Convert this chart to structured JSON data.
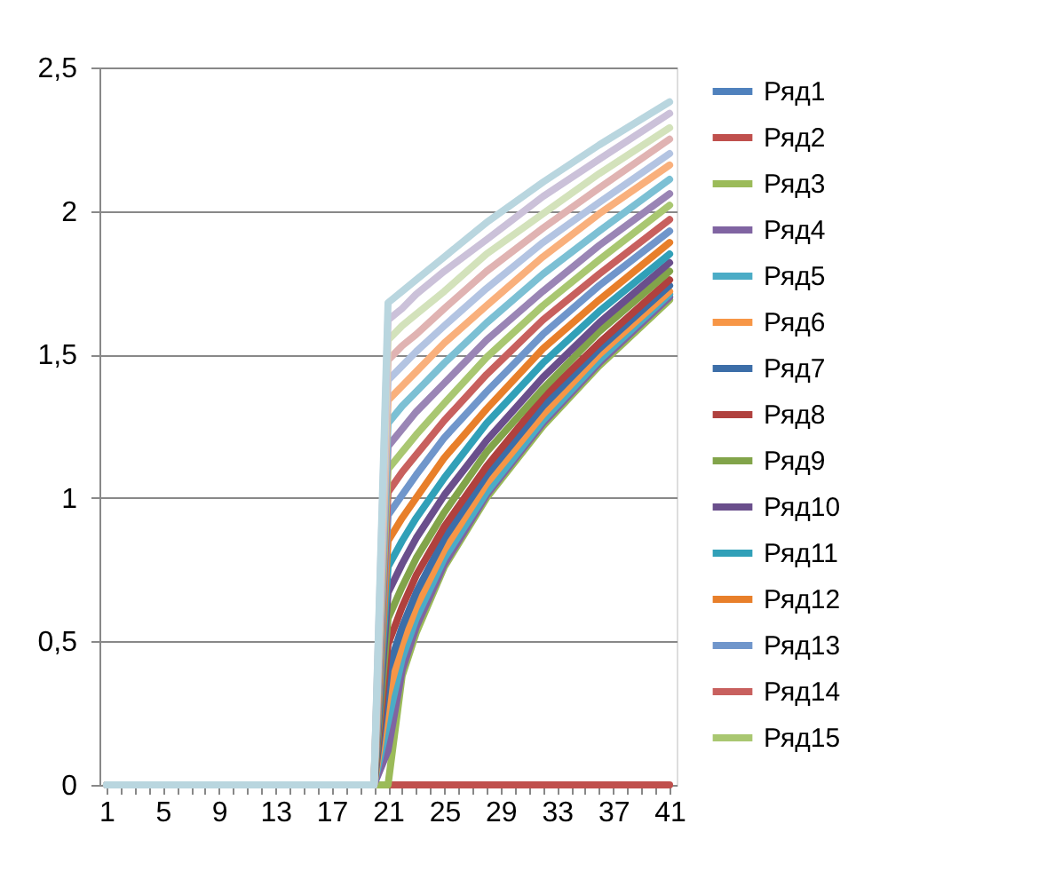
{
  "chart_data": {
    "type": "line",
    "xlim": [
      0.5,
      41.5
    ],
    "xticks": [
      1,
      {
        "value": 2,
        "label": null
      },
      {
        "value": 3,
        "label": null
      },
      {
        "value": 4,
        "label": null
      },
      5,
      {
        "value": 6,
        "label": null
      },
      {
        "value": 7,
        "label": null
      },
      {
        "value": 8,
        "label": null
      },
      9,
      {
        "value": 10,
        "label": null
      },
      {
        "value": 11,
        "label": null
      },
      {
        "value": 12,
        "label": null
      },
      13,
      {
        "value": 14,
        "label": null
      },
      {
        "value": 15,
        "label": null
      },
      {
        "value": 16,
        "label": null
      },
      17,
      {
        "value": 18,
        "label": null
      },
      {
        "value": 19,
        "label": null
      },
      {
        "value": 20,
        "label": null
      },
      21,
      {
        "value": 22,
        "label": null
      },
      {
        "value": 23,
        "label": null
      },
      {
        "value": 24,
        "label": null
      },
      25,
      {
        "value": 26,
        "label": null
      },
      {
        "value": 27,
        "label": null
      },
      {
        "value": 28,
        "label": null
      },
      29,
      {
        "value": 30,
        "label": null
      },
      {
        "value": 31,
        "label": null
      },
      {
        "value": 32,
        "label": null
      },
      33,
      {
        "value": 34,
        "label": null
      },
      {
        "value": 35,
        "label": null
      },
      {
        "value": 36,
        "label": null
      },
      37,
      {
        "value": 38,
        "label": null
      },
      {
        "value": 39,
        "label": null
      },
      {
        "value": 40,
        "label": null
      },
      41
    ],
    "ylim": [
      0,
      2.5
    ],
    "yticks": [
      0,
      {
        "value": 0.5,
        "label": "0,5"
      },
      1,
      {
        "value": 1.5,
        "label": "1,5"
      },
      2,
      {
        "value": 2.5,
        "label": "2,5"
      }
    ],
    "grid": "y",
    "legend": "right",
    "series": [
      {
        "name": "Ряд1",
        "color": "#4f81bd"
      },
      {
        "name": "Ряд2",
        "color": "#c0504d",
        "x": [
          1,
          41
        ],
        "values": [
          0,
          0
        ]
      },
      {
        "name": "Ряд3",
        "color": "#9bbb59",
        "x": [
          1,
          20,
          21,
          22,
          23,
          25,
          28,
          32,
          36,
          41
        ],
        "values": [
          0,
          0,
          0,
          0.38,
          0.53,
          0.76,
          1.0,
          1.25,
          1.46,
          1.69
        ]
      },
      {
        "name": "Ряд4",
        "color": "#8064a2",
        "x": [
          1,
          20,
          21,
          22,
          23,
          25,
          28,
          32,
          36,
          41
        ],
        "values": [
          0,
          0,
          0.12,
          0.4,
          0.55,
          0.77,
          1.01,
          1.26,
          1.47,
          1.7
        ]
      },
      {
        "name": "Ряд5",
        "color": "#4bacc6",
        "x": [
          1,
          20,
          21,
          22,
          23,
          25,
          28,
          32,
          36,
          41
        ],
        "values": [
          0,
          0,
          0.22,
          0.44,
          0.58,
          0.79,
          1.02,
          1.27,
          1.48,
          1.71
        ]
      },
      {
        "name": "Ряд6",
        "color": "#f79646",
        "x": [
          1,
          20,
          21,
          22,
          23,
          25,
          28,
          32,
          36,
          41
        ],
        "values": [
          0,
          0,
          0.31,
          0.49,
          0.62,
          0.82,
          1.05,
          1.29,
          1.5,
          1.72
        ]
      },
      {
        "name": "Ряд7",
        "color": "#3c6ea8",
        "x": [
          1,
          20,
          21,
          22,
          23,
          25,
          28,
          32,
          36,
          41
        ],
        "values": [
          0,
          0,
          0.4,
          0.55,
          0.67,
          0.86,
          1.08,
          1.32,
          1.52,
          1.74
        ]
      },
      {
        "name": "Ряд8",
        "color": "#b0413e",
        "x": [
          1,
          20,
          21,
          22,
          23,
          25,
          28,
          32,
          36,
          41
        ],
        "values": [
          0,
          0,
          0.49,
          0.62,
          0.73,
          0.9,
          1.11,
          1.35,
          1.54,
          1.76
        ]
      },
      {
        "name": "Ряд9",
        "color": "#82a44a",
        "x": [
          1,
          20,
          21,
          22,
          23,
          25,
          28,
          32,
          36,
          41
        ],
        "values": [
          0,
          0,
          0.58,
          0.69,
          0.79,
          0.95,
          1.16,
          1.38,
          1.58,
          1.79
        ]
      },
      {
        "name": "Ряд10",
        "color": "#6a4f8c",
        "x": [
          1,
          20,
          21,
          22,
          23,
          25,
          28,
          32,
          36,
          41
        ],
        "values": [
          0,
          0,
          0.67,
          0.77,
          0.86,
          1.01,
          1.2,
          1.42,
          1.61,
          1.82
        ]
      },
      {
        "name": "Ряд11",
        "color": "#31a0b8",
        "x": [
          1,
          20,
          21,
          22,
          23,
          25,
          28,
          32,
          36,
          41
        ],
        "values": [
          0,
          0,
          0.76,
          0.85,
          0.93,
          1.07,
          1.26,
          1.47,
          1.65,
          1.85
        ]
      },
      {
        "name": "Ряд12",
        "color": "#e87f2a",
        "x": [
          1,
          20,
          21,
          22,
          23,
          25,
          28,
          32,
          36,
          41
        ],
        "values": [
          0,
          0,
          0.85,
          0.93,
          1.0,
          1.14,
          1.31,
          1.52,
          1.69,
          1.89
        ]
      },
      {
        "name": "Ряд13",
        "color": "#7096cb",
        "x": [
          1,
          20,
          21,
          22,
          23,
          25,
          28,
          32,
          36,
          41
        ],
        "values": [
          0,
          0,
          0.94,
          1.01,
          1.08,
          1.21,
          1.37,
          1.57,
          1.74,
          1.93
        ]
      },
      {
        "name": "Ряд14",
        "color": "#c8605e",
        "x": [
          1,
          20,
          21,
          22,
          23,
          25,
          28,
          32,
          36,
          41
        ],
        "values": [
          0,
          0,
          1.02,
          1.09,
          1.15,
          1.27,
          1.43,
          1.62,
          1.78,
          1.97
        ]
      },
      {
        "name": "Ряд15",
        "color": "#a9c771",
        "x": [
          1,
          20,
          21,
          22,
          23,
          25,
          28,
          32,
          36,
          41
        ],
        "values": [
          0,
          0,
          1.1,
          1.16,
          1.22,
          1.33,
          1.49,
          1.67,
          1.83,
          2.02
        ]
      },
      {
        "color": "#9a85b5",
        "x": [
          1,
          20,
          21,
          22,
          23,
          25,
          28,
          32,
          36,
          41
        ],
        "values": [
          0,
          0,
          1.18,
          1.24,
          1.3,
          1.4,
          1.55,
          1.72,
          1.88,
          2.06
        ]
      },
      {
        "color": "#7cc0d4",
        "x": [
          1,
          20,
          21,
          22,
          23,
          25,
          28,
          32,
          36,
          41
        ],
        "values": [
          0,
          0,
          1.26,
          1.32,
          1.37,
          1.47,
          1.61,
          1.78,
          1.93,
          2.11
        ]
      },
      {
        "color": "#f9b07c",
        "x": [
          1,
          20,
          21,
          22,
          23,
          25,
          28,
          32,
          36,
          41
        ],
        "values": [
          0,
          0,
          1.34,
          1.39,
          1.44,
          1.54,
          1.67,
          1.84,
          1.99,
          2.16
        ]
      },
      {
        "color": "#b3c4e2",
        "x": [
          1,
          20,
          21,
          22,
          23,
          25,
          28,
          32,
          36,
          41
        ],
        "values": [
          0,
          0,
          1.41,
          1.46,
          1.51,
          1.6,
          1.73,
          1.89,
          2.03,
          2.2
        ]
      },
      {
        "color": "#e0b3b2",
        "x": [
          1,
          20,
          21,
          22,
          23,
          25,
          28,
          32,
          36,
          41
        ],
        "values": [
          0,
          0,
          1.48,
          1.53,
          1.57,
          1.66,
          1.79,
          1.94,
          2.08,
          2.25
        ]
      },
      {
        "color": "#d3e2bb",
        "x": [
          1,
          20,
          21,
          22,
          23,
          25,
          28,
          32,
          36,
          41
        ],
        "values": [
          0,
          0,
          1.55,
          1.6,
          1.64,
          1.72,
          1.85,
          1.99,
          2.13,
          2.29
        ]
      },
      {
        "color": "#cbc1d9",
        "x": [
          1,
          20,
          21,
          22,
          23,
          25,
          28,
          32,
          36,
          41
        ],
        "values": [
          0,
          0,
          1.62,
          1.66,
          1.71,
          1.79,
          1.9,
          2.05,
          2.18,
          2.34
        ]
      },
      {
        "color": "#b9d6df",
        "x": [
          1,
          20,
          21,
          22,
          23,
          25,
          28,
          32,
          36,
          41
        ],
        "values": [
          0,
          0,
          1.68,
          1.72,
          1.76,
          1.84,
          1.96,
          2.1,
          2.23,
          2.38
        ]
      }
    ]
  }
}
